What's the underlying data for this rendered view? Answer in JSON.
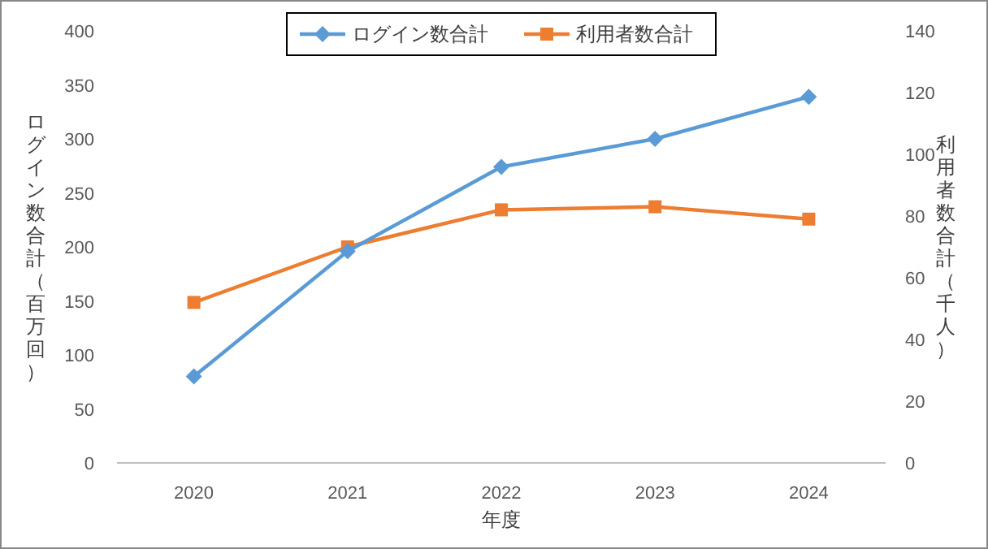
{
  "chart_data": {
    "type": "line",
    "xlabel": "年度",
    "ylabel": "ログイン数合計（百万回）",
    "y2label": "利用者数合計（千人）",
    "categories": [
      "2020",
      "2021",
      "2022",
      "2023",
      "2024"
    ],
    "series": [
      {
        "name": "ログイン数合計",
        "color": "#5b9bd5",
        "marker": "diamond",
        "values": [
          80,
          196,
          274,
          300,
          339
        ]
      },
      {
        "name": "利用者数合計",
        "color": "#ed7d31",
        "marker": "square",
        "axis": "y2",
        "values": [
          52,
          70,
          82,
          83,
          79
        ]
      }
    ],
    "ylim": [
      0,
      400
    ],
    "yticks": [
      0,
      50,
      100,
      150,
      200,
      250,
      300,
      350,
      400
    ],
    "y2lim": [
      0,
      140
    ],
    "y2ticks": [
      0,
      20,
      40,
      60,
      80,
      100,
      120,
      140
    ],
    "grid": false,
    "legend": "top"
  }
}
